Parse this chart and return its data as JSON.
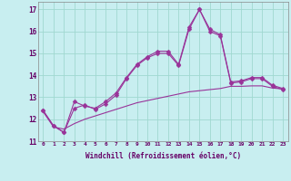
{
  "xlabel": "Windchill (Refroidissement éolien,°C)",
  "xlim": [
    -0.5,
    23.5
  ],
  "ylim": [
    11,
    17.35
  ],
  "yticks": [
    11,
    12,
    13,
    14,
    15,
    16,
    17
  ],
  "xticks": [
    0,
    1,
    2,
    3,
    4,
    5,
    6,
    7,
    8,
    9,
    10,
    11,
    12,
    13,
    14,
    15,
    16,
    17,
    18,
    19,
    20,
    21,
    22,
    23
  ],
  "background_color": "#c8eef0",
  "grid_color": "#a0d8d0",
  "line_color": "#993399",
  "line1": [
    12.4,
    11.7,
    11.4,
    12.8,
    12.6,
    12.5,
    12.8,
    13.2,
    13.9,
    14.5,
    14.85,
    15.1,
    15.1,
    14.5,
    16.2,
    17.0,
    16.1,
    15.85,
    13.7,
    13.75,
    13.9,
    13.9,
    13.55,
    13.4
  ],
  "line2": [
    12.4,
    11.7,
    11.4,
    12.5,
    12.65,
    12.45,
    12.7,
    13.1,
    13.85,
    14.45,
    14.8,
    15.0,
    15.0,
    14.45,
    16.1,
    17.0,
    16.0,
    15.8,
    13.65,
    13.7,
    13.85,
    13.85,
    13.5,
    13.35
  ],
  "line3": [
    12.35,
    11.65,
    11.55,
    11.8,
    12.0,
    12.15,
    12.3,
    12.45,
    12.6,
    12.75,
    12.85,
    12.95,
    13.05,
    13.15,
    13.25,
    13.3,
    13.35,
    13.4,
    13.5,
    13.5,
    13.52,
    13.52,
    13.42,
    13.38
  ],
  "marker": "D",
  "markersize": 2.5,
  "linewidth": 0.8
}
